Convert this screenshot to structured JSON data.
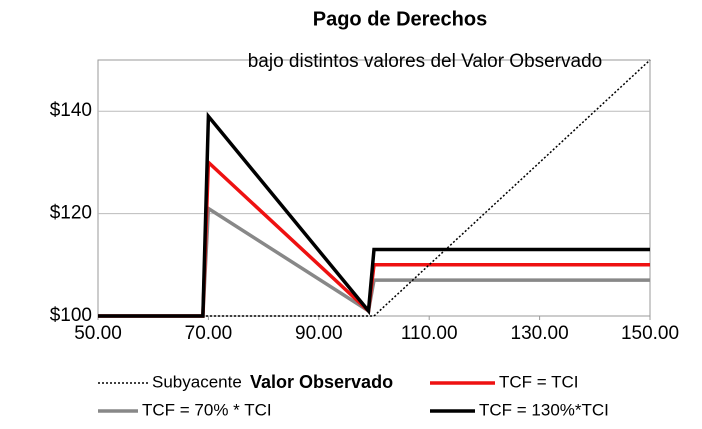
{
  "chart_data": {
    "type": "line",
    "title": "Pago de Derechos",
    "subtitle": "bajo distintos valores del Valor Observado",
    "x_label": "Valor Observado",
    "x": [
      50,
      69,
      70,
      99,
      100,
      150
    ],
    "series": [
      {
        "name": "Subyacente",
        "color": "#000000",
        "dash": "dotted",
        "values": [
          100,
          100,
          100,
          100,
          100,
          150
        ]
      },
      {
        "name": "TCF = TCI",
        "color": "#ee1111",
        "values": [
          100,
          100,
          130,
          101,
          110,
          110
        ]
      },
      {
        "name": "TCF = 70% * TCI",
        "color": "#888888",
        "values": [
          100,
          100,
          121,
          101,
          107,
          107
        ]
      },
      {
        "name": "TCF = 130%*TCI",
        "color": "#000000",
        "values": [
          100,
          100,
          139,
          101,
          113,
          113
        ]
      }
    ],
    "xlim": [
      50,
      150
    ],
    "xticks": [
      {
        "value": 50,
        "label": "50.00"
      },
      {
        "value": 70,
        "label": "70.00"
      },
      {
        "value": 90,
        "label": "90.00"
      },
      {
        "value": 110,
        "label": "110.00"
      },
      {
        "value": 130,
        "label": "130.00"
      },
      {
        "value": 150,
        "label": "150.00"
      }
    ],
    "ylim": [
      100,
      150
    ],
    "yticks": [
      {
        "value": 100,
        "label": "$100"
      },
      {
        "value": 120,
        "label": "$120"
      },
      {
        "value": 140,
        "label": "$140"
      }
    ],
    "grid": true
  }
}
